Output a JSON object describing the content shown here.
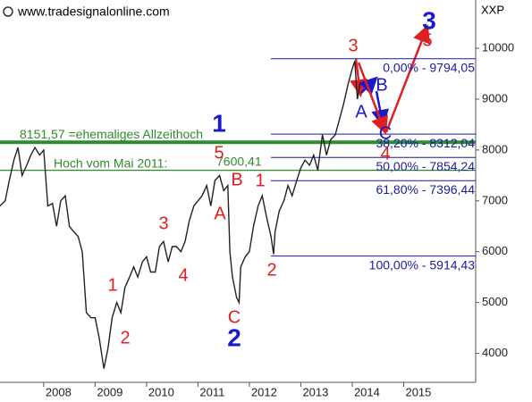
{
  "chart_data": {
    "type": "line",
    "source": "www.tradesignalonline.com",
    "symbol": "XXP",
    "x": [
      2007.15,
      2007.25,
      2007.33,
      2007.42,
      2007.5,
      2007.58,
      2007.67,
      2007.75,
      2007.83,
      2007.92,
      2008.0,
      2008.08,
      2008.17,
      2008.25,
      2008.33,
      2008.42,
      2008.5,
      2008.58,
      2008.67,
      2008.75,
      2008.83,
      2008.92,
      2009.0,
      2009.08,
      2009.17,
      2009.25,
      2009.33,
      2009.42,
      2009.5,
      2009.58,
      2009.67,
      2009.75,
      2009.83,
      2009.92,
      2010.0,
      2010.08,
      2010.17,
      2010.25,
      2010.33,
      2010.42,
      2010.5,
      2010.58,
      2010.67,
      2010.75,
      2010.83,
      2010.92,
      2011.0,
      2011.08,
      2011.17,
      2011.25,
      2011.33,
      2011.42,
      2011.5,
      2011.58,
      2011.62,
      2011.67,
      2011.75,
      2011.8,
      2011.83,
      2011.92,
      2012.0,
      2012.08,
      2012.17,
      2012.25,
      2012.33,
      2012.42,
      2012.47,
      2012.5,
      2012.58,
      2012.67,
      2012.75,
      2012.83,
      2012.92,
      2013.0,
      2013.08,
      2013.17,
      2013.25,
      2013.33,
      2013.42,
      2013.5,
      2013.58,
      2013.67,
      2013.75,
      2013.83,
      2013.92,
      2014.0,
      2014.05,
      2014.1,
      2014.15
    ],
    "series": [
      {
        "color": "#222222",
        "values": [
          6900,
          7000,
          7400,
          7800,
          8050,
          7500,
          7700,
          7900,
          8050,
          7900,
          8000,
          6900,
          6950,
          6500,
          7000,
          7100,
          6500,
          6400,
          6300,
          6000,
          4800,
          4700,
          4700,
          4300,
          3700,
          4100,
          4700,
          5000,
          4800,
          5300,
          5500,
          5700,
          5500,
          5800,
          5900,
          5600,
          5600,
          6100,
          6200,
          5800,
          6100,
          6100,
          6000,
          6200,
          6600,
          6900,
          7000,
          7100,
          7300,
          6900,
          7400,
          7500,
          7200,
          7300,
          6000,
          5500,
          5100,
          5000,
          5700,
          5900,
          6000,
          6500,
          6900,
          7100,
          6700,
          6300,
          5950,
          6400,
          6800,
          7000,
          7300,
          7100,
          7400,
          7650,
          7800,
          7700,
          7900,
          7600,
          8300,
          7900,
          8200,
          8300,
          8600,
          8900,
          9300,
          9600,
          9750,
          9000,
          9300
        ]
      }
    ],
    "xlim": [
      2007.15,
      2016.4
    ],
    "ylim": [
      3430,
      10950
    ],
    "xticks": [
      2008,
      2009,
      2010,
      2011,
      2012,
      2013,
      2014,
      2015
    ],
    "yticks": [
      4000,
      5000,
      6000,
      7000,
      8000,
      9000,
      10000
    ],
    "fib_levels": [
      {
        "value": 9794.05,
        "label": "0,00% - 9794,05"
      },
      {
        "value": 8312.04,
        "label": "38,20% - 8312,04"
      },
      {
        "value": 7854.24,
        "label": "50,00% - 7854,24"
      },
      {
        "value": 7396.44,
        "label": "61,80% - 7396,44"
      },
      {
        "value": 5914.43,
        "label": "100,00% - 5914,43"
      }
    ],
    "fib_color": "#1a1aa6",
    "reference_lines": [
      {
        "value": 8151.57,
        "label": "8151,57 =ehemaliges Allzeithoch"
      },
      {
        "value": 7600.41,
        "label": "7600,41"
      }
    ],
    "reference_color": "#2e8b2e",
    "reference_note": "Hoch vom Mai 2011:",
    "wave_labels": [
      {
        "text": "3",
        "color": "#1a1acc"
      },
      {
        "text": "5",
        "color": "#e02020"
      },
      {
        "text": "3",
        "color": "#e02020"
      },
      {
        "text": "A",
        "color": "#1a1acc"
      },
      {
        "text": "B",
        "color": "#1a1acc"
      },
      {
        "text": "C",
        "color": "#1a1acc"
      },
      {
        "text": "4",
        "color": "#e02020"
      },
      {
        "text": "1",
        "color": "#1a1acc"
      },
      {
        "text": "5",
        "color": "#e02020"
      },
      {
        "text": "B",
        "color": "#e02020"
      },
      {
        "text": "A",
        "color": "#e02020"
      },
      {
        "text": "1",
        "color": "#e02020"
      },
      {
        "text": "2",
        "color": "#e02020"
      },
      {
        "text": "C",
        "color": "#e02020"
      },
      {
        "text": "2",
        "color": "#1a1acc"
      },
      {
        "text": "3",
        "color": "#e02020"
      },
      {
        "text": "4",
        "color": "#e02020"
      },
      {
        "text": "1",
        "color": "#e02020"
      },
      {
        "text": "2",
        "color": "#e02020"
      }
    ]
  }
}
